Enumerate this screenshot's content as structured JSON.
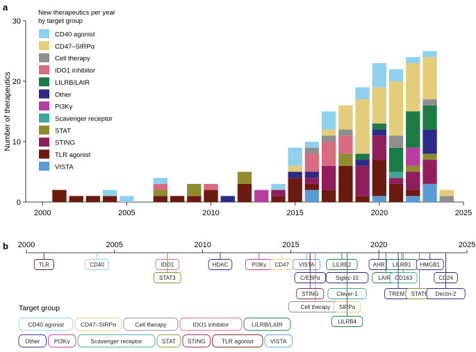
{
  "panel_a": {
    "label": "a"
  },
  "panel_b": {
    "label": "b"
  },
  "chart_data": [
    {
      "type": "bar",
      "stacked": true,
      "title": "",
      "xlabel": "",
      "ylabel": "Number of therapeutics",
      "xlim": [
        1999,
        2025
      ],
      "ylim": [
        0,
        30
      ],
      "x_ticks": [
        2000,
        2005,
        2010,
        2015,
        2020,
        2025
      ],
      "y_ticks": [
        0,
        10,
        20,
        30
      ],
      "legend": {
        "title_lines": [
          "New therapeutics per year",
          "by target group"
        ],
        "placement": "top-left"
      },
      "series": [
        {
          "name": "VISTA",
          "color": "#5b9bd5"
        },
        {
          "name": "TLR agonist",
          "color": "#6b1a10"
        },
        {
          "name": "STING",
          "color": "#8e1f5c"
        },
        {
          "name": "STAT",
          "color": "#8e8c2e"
        },
        {
          "name": "Scavenger receptor",
          "color": "#3fa89a"
        },
        {
          "name": "PI3Kγ",
          "color": "#b73e9e"
        },
        {
          "name": "Other",
          "color": "#2b2a86"
        },
        {
          "name": "LILRB/LAIR",
          "color": "#1e7a45"
        },
        {
          "name": "IDO1 inhibitor",
          "color": "#d96b80"
        },
        {
          "name": "Cell therapy",
          "color": "#8e8e8e"
        },
        {
          "name": "CD47–SIRPα",
          "color": "#e3cc7a"
        },
        {
          "name": "CD40 agonist",
          "color": "#8ed0ee"
        }
      ],
      "stacks": [
        {
          "x": 2001,
          "segments": [
            [
              "TLR agonist",
              2
            ]
          ]
        },
        {
          "x": 2002,
          "segments": [
            [
              "TLR agonist",
              1
            ]
          ]
        },
        {
          "x": 2003,
          "segments": [
            [
              "TLR agonist",
              1
            ]
          ]
        },
        {
          "x": 2004,
          "segments": [
            [
              "TLR agonist",
              1
            ],
            [
              "CD40 agonist",
              1
            ]
          ]
        },
        {
          "x": 2005,
          "segments": [
            [
              "CD40 agonist",
              1
            ]
          ]
        },
        {
          "x": 2007,
          "segments": [
            [
              "TLR agonist",
              1
            ],
            [
              "STAT",
              1
            ],
            [
              "IDO1 inhibitor",
              1
            ],
            [
              "CD40 agonist",
              1
            ]
          ]
        },
        {
          "x": 2008,
          "segments": [
            [
              "TLR agonist",
              1
            ]
          ]
        },
        {
          "x": 2009,
          "segments": [
            [
              "TLR agonist",
              1
            ],
            [
              "STAT",
              2
            ]
          ]
        },
        {
          "x": 2010,
          "segments": [
            [
              "TLR agonist",
              2
            ],
            [
              "IDO1 inhibitor",
              1
            ]
          ]
        },
        {
          "x": 2011,
          "segments": [
            [
              "Other",
              1
            ]
          ]
        },
        {
          "x": 2012,
          "segments": [
            [
              "TLR agonist",
              3
            ],
            [
              "STAT",
              2
            ]
          ]
        },
        {
          "x": 2013,
          "segments": [
            [
              "PI3Kγ",
              2
            ]
          ]
        },
        {
          "x": 2014,
          "segments": [
            [
              "TLR agonist",
              1
            ],
            [
              "STING",
              1
            ],
            [
              "CD40 agonist",
              1
            ]
          ]
        },
        {
          "x": 2015,
          "segments": [
            [
              "TLR agonist",
              4
            ],
            [
              "Other",
              1
            ],
            [
              "CD47–SIRPα",
              1
            ],
            [
              "CD40 agonist",
              3
            ]
          ]
        },
        {
          "x": 2016,
          "segments": [
            [
              "VISTA",
              2
            ],
            [
              "TLR agonist",
              1
            ],
            [
              "STING",
              1
            ],
            [
              "Other",
              1
            ],
            [
              "IDO1 inhibitor",
              3
            ],
            [
              "Cell therapy",
              1
            ],
            [
              "CD40 agonist",
              1
            ]
          ]
        },
        {
          "x": 2017,
          "segments": [
            [
              "TLR agonist",
              2
            ],
            [
              "STING",
              4
            ],
            [
              "IDO1 inhibitor",
              4
            ],
            [
              "Cell therapy",
              1
            ],
            [
              "CD47–SIRPα",
              1
            ],
            [
              "CD40 agonist",
              3
            ]
          ]
        },
        {
          "x": 2018,
          "segments": [
            [
              "TLR agonist",
              6
            ],
            [
              "STAT",
              2
            ],
            [
              "IDO1 inhibitor",
              3
            ],
            [
              "Cell therapy",
              1
            ],
            [
              "CD47–SIRPα",
              4
            ]
          ]
        },
        {
          "x": 2019,
          "segments": [
            [
              "TLR agonist",
              1
            ],
            [
              "STING",
              5
            ],
            [
              "Other",
              1
            ],
            [
              "LILRB/LAIR",
              1
            ],
            [
              "CD47–SIRPα",
              9
            ],
            [
              "CD40 agonist",
              2
            ]
          ]
        },
        {
          "x": 2020,
          "segments": [
            [
              "VISTA",
              1
            ],
            [
              "TLR agonist",
              6
            ],
            [
              "STING",
              4
            ],
            [
              "Other",
              1
            ],
            [
              "LILRB/LAIR",
              1
            ],
            [
              "CD47–SIRPα",
              6
            ],
            [
              "CD40 agonist",
              4
            ]
          ]
        },
        {
          "x": 2021,
          "segments": [
            [
              "TLR agonist",
              3
            ],
            [
              "STING",
              1
            ],
            [
              "Scavenger receptor",
              1
            ],
            [
              "LILRB/LAIR",
              4
            ],
            [
              "Cell therapy",
              2
            ],
            [
              "CD47–SIRPα",
              9
            ],
            [
              "CD40 agonist",
              2
            ]
          ]
        },
        {
          "x": 2022,
          "segments": [
            [
              "VISTA",
              1
            ],
            [
              "TLR agonist",
              1
            ],
            [
              "STING",
              3
            ],
            [
              "STAT",
              1
            ],
            [
              "PI3Kγ",
              3
            ],
            [
              "LILRB/LAIR",
              6
            ],
            [
              "CD47–SIRPα",
              8
            ],
            [
              "CD40 agonist",
              1
            ]
          ]
        },
        {
          "x": 2023,
          "segments": [
            [
              "VISTA",
              3
            ],
            [
              "STING",
              4
            ],
            [
              "STAT",
              1
            ],
            [
              "Other",
              4
            ],
            [
              "LILRB/LAIR",
              4
            ],
            [
              "Cell therapy",
              1
            ],
            [
              "CD47–SIRPα",
              7
            ],
            [
              "CD40 agonist",
              1
            ]
          ]
        },
        {
          "x": 2024,
          "segments": [
            [
              "Cell therapy",
              1
            ],
            [
              "CD47–SIRPα",
              1
            ]
          ]
        }
      ]
    },
    {
      "type": "timeline",
      "title": "",
      "xlim": [
        2000,
        2025
      ],
      "x_ticks": [
        2000,
        2005,
        2010,
        2015,
        2020,
        2025
      ],
      "legend": {
        "title": "Target group",
        "placement": "bottom-left"
      },
      "events": [
        {
          "label": "TLR",
          "x": 2001,
          "group": "TLR agonist",
          "row": 0
        },
        {
          "label": "CD40",
          "x": 2004,
          "group": "CD40 agonist",
          "row": 0
        },
        {
          "label": "IDO1",
          "x": 2008,
          "group": "IDO1 inhibitor",
          "row": 0
        },
        {
          "label": "STAT3",
          "x": 2008,
          "group": "STAT",
          "row": 1
        },
        {
          "label": "HDAC",
          "x": 2011,
          "group": "Other",
          "row": 0
        },
        {
          "label": "PI3Kγ",
          "x": 2013.2,
          "group": "PI3Kγ",
          "row": 0
        },
        {
          "label": "CD47",
          "x": 2014.5,
          "group": "CD47–SIRPα",
          "row": 0
        },
        {
          "label": "VISTA",
          "x": 2015.9,
          "group": "VISTA",
          "row": 0
        },
        {
          "label": "C/EBPα",
          "x": 2016.1,
          "group": "Other",
          "row": 1
        },
        {
          "label": "STING",
          "x": 2016.1,
          "group": "STING",
          "row": 2
        },
        {
          "label": "Cell therapy",
          "x": 2016.4,
          "group": "Cell therapy",
          "row": 3
        },
        {
          "label": "LILRB2",
          "x": 2017.9,
          "group": "LILRB/LAIR",
          "row": 0
        },
        {
          "label": "Siglec-15",
          "x": 2018.2,
          "group": "Other",
          "row": 1
        },
        {
          "label": "Clever-1",
          "x": 2018.2,
          "group": "Scavenger receptor",
          "row": 2
        },
        {
          "label": "SIRPα",
          "x": 2018.2,
          "group": "CD47–SIRPα",
          "row": 3
        },
        {
          "label": "LILRB4",
          "x": 2018.2,
          "group": "LILRB/LAIR",
          "row": 4
        },
        {
          "label": "AHR",
          "x": 2020.0,
          "group": "Other",
          "row": 0
        },
        {
          "label": "LAIR1",
          "x": 2020.4,
          "group": "LILRB/LAIR",
          "row": 1
        },
        {
          "label": "CD163",
          "x": 2021.4,
          "group": "Scavenger receptor",
          "row": 1
        },
        {
          "label": "LILRB1",
          "x": 2021.3,
          "group": "LILRB/LAIR",
          "row": 0
        },
        {
          "label": "TREM1",
          "x": 2021.1,
          "group": "Other",
          "row": 2
        },
        {
          "label": "STAT6",
          "x": 2022.3,
          "group": "STAT",
          "row": 2
        },
        {
          "label": "HMGB1",
          "x": 2022.9,
          "group": "Other",
          "row": 0
        },
        {
          "label": "CD24",
          "x": 2023.8,
          "group": "Other",
          "row": 1
        },
        {
          "label": "Dectin-2",
          "x": 2023.8,
          "group": "Other",
          "row": 2
        }
      ],
      "legend_rows": [
        [
          "CD40 agonist",
          "CD47–SIRPα",
          "Cell therapy",
          "IDO1 inhibitor",
          "LILRB/LAIR"
        ],
        [
          "Other",
          "PI3Kγ",
          "Scavenger receptor",
          "STAT",
          "STING",
          "TLR agonist",
          "VISTA"
        ]
      ]
    }
  ]
}
